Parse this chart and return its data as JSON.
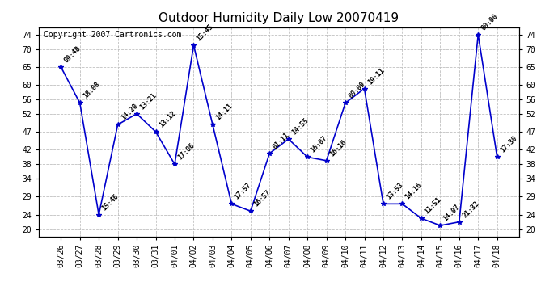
{
  "title": "Outdoor Humidity Daily Low 20070419",
  "copyright": "Copyright 2007 Cartronics.com",
  "line_color": "#0000cc",
  "marker_color": "#0000cc",
  "bg_color": "#ffffff",
  "grid_color": "#c0c0c0",
  "dates": [
    "03/26",
    "03/27",
    "03/28",
    "03/29",
    "03/30",
    "03/31",
    "04/01",
    "04/02",
    "04/03",
    "04/04",
    "04/05",
    "04/06",
    "04/07",
    "04/08",
    "04/09",
    "04/10",
    "04/11",
    "04/12",
    "04/13",
    "04/14",
    "04/15",
    "04/16",
    "04/17",
    "04/18"
  ],
  "values": [
    65,
    55,
    24,
    49,
    52,
    47,
    38,
    71,
    49,
    27,
    25,
    41,
    45,
    40,
    39,
    55,
    59,
    27,
    27,
    23,
    21,
    22,
    74,
    40
  ],
  "times": [
    "09:48",
    "18:08",
    "15:46",
    "14:20",
    "13:21",
    "13:12",
    "17:06",
    "15:45",
    "14:11",
    "17:57",
    "16:57",
    "01:11",
    "14:55",
    "16:07",
    "16:16",
    "00:09",
    "19:11",
    "13:53",
    "14:16",
    "11:51",
    "14:07",
    "21:32",
    "00:00",
    "17:30"
  ],
  "ylim": [
    18,
    76
  ],
  "yticks": [
    20,
    24,
    29,
    34,
    38,
    42,
    47,
    52,
    56,
    60,
    65,
    70,
    74
  ],
  "title_fontsize": 11,
  "label_fontsize": 6.0,
  "tick_fontsize": 7,
  "copyright_fontsize": 7
}
